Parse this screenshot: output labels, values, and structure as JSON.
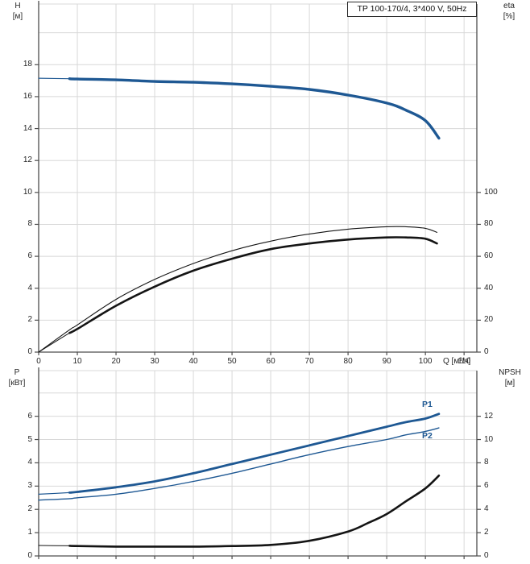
{
  "panel": {
    "title_box": "TP 100-170/4, 3*400 V, 50Hz",
    "top_left_axis_label": {
      "line1": "H",
      "line2": "[м]"
    },
    "top_right_axis_label": {
      "line1": "eta",
      "line2": "[%]"
    },
    "x_axis_label": "Q [м³/ч]",
    "bottom_left_axis_label": {
      "line1": "P",
      "line2": "[кВт]"
    },
    "bottom_right_axis_label": {
      "line1": "NPSH",
      "line2": "[м]"
    },
    "p1_label": "P1",
    "p2_label": "P2"
  },
  "colors": {
    "blue": "#1e5893",
    "black": "#141414",
    "grid": "#d8d8d8",
    "axis": "#4d4d4d",
    "text": "#262626"
  },
  "chart_data": [
    {
      "type": "line",
      "title": "TP 100-170/4, 3*400 V, 50Hz",
      "xlabel": "Q [м³/ч]",
      "ylabel_left": "H [м]",
      "ylabel_right": "eta [%]",
      "xlim": [
        0,
        113.3
      ],
      "x_ticks": [
        0,
        10,
        20,
        30,
        40,
        50,
        60,
        70,
        80,
        90,
        100,
        110
      ],
      "show_x_labels": true,
      "ylim_left": [
        0,
        21.8
      ],
      "y_ticks_left": [
        0,
        2,
        4,
        6,
        8,
        10,
        12,
        14,
        16,
        18
      ],
      "grid_step_left": 2,
      "y_ticks_right": [
        0,
        20,
        40,
        60,
        80,
        100
      ],
      "right_scale_to_left": 0.1,
      "grid": true,
      "legend": "none",
      "series": [
        {
          "name": "H",
          "axis": "left",
          "color_key": "blue",
          "width_thin": 1.2,
          "thin_to": 8,
          "width_thick": 3.4,
          "x": [
            0,
            8,
            10,
            20,
            30,
            40,
            50,
            60,
            70,
            80,
            90,
            95,
            100,
            103.5
          ],
          "y": [
            17.15,
            17.12,
            17.1,
            17.05,
            16.95,
            16.9,
            16.8,
            16.65,
            16.45,
            16.1,
            15.6,
            15.15,
            14.5,
            13.4
          ]
        },
        {
          "name": "eta-thin",
          "axis": "right",
          "color_key": "black",
          "width_thin": 1.1,
          "x": [
            0,
            8,
            10,
            20,
            30,
            40,
            50,
            60,
            70,
            80,
            90,
            95,
            100,
            103
          ],
          "y": [
            0,
            14,
            17,
            33,
            45.5,
            55.5,
            63.5,
            69.5,
            74,
            77,
            78.5,
            78.5,
            77.5,
            75
          ]
        },
        {
          "name": "eta-thick",
          "axis": "right",
          "color_key": "black",
          "width_thin": 1,
          "thin_to": 8,
          "width_thick": 2.6,
          "x": [
            0,
            8,
            10,
            20,
            30,
            40,
            50,
            60,
            70,
            80,
            90,
            95,
            100,
            103
          ],
          "y": [
            0,
            12,
            14.5,
            29,
            41,
            51,
            58.5,
            64.5,
            68,
            70.5,
            71.8,
            71.8,
            71,
            68
          ]
        }
      ]
    },
    {
      "type": "line",
      "title": "",
      "xlabel": "",
      "ylabel_left": "P [кВт]",
      "ylabel_right": "NPSH [м]",
      "xlim": [
        0,
        113.3
      ],
      "x_ticks": [
        0,
        10,
        20,
        30,
        40,
        50,
        60,
        70,
        80,
        90,
        100,
        110
      ],
      "show_x_labels": false,
      "ylim_left": [
        0,
        7.96
      ],
      "y_ticks_left": [
        0,
        1,
        2,
        3,
        4,
        5,
        6
      ],
      "grid_step_left": 1,
      "y_ticks_right": [
        0,
        2,
        4,
        6,
        8,
        10,
        12
      ],
      "right_scale_to_left": 0.5,
      "grid": true,
      "legend": "inline P1/P2 labels",
      "series": [
        {
          "name": "P1",
          "axis": "left",
          "color_key": "blue",
          "width_thin": 1.2,
          "thin_to": 8,
          "width_thick": 2.8,
          "x": [
            0,
            8,
            10,
            20,
            30,
            40,
            50,
            60,
            70,
            80,
            90,
            95,
            100,
            103.5
          ],
          "y": [
            2.65,
            2.72,
            2.75,
            2.95,
            3.2,
            3.55,
            3.95,
            4.35,
            4.75,
            5.15,
            5.55,
            5.75,
            5.9,
            6.1
          ]
        },
        {
          "name": "P2",
          "axis": "left",
          "color_key": "blue",
          "width_thin": 1.4,
          "x": [
            0,
            8,
            10,
            20,
            30,
            40,
            50,
            60,
            70,
            80,
            90,
            95,
            100,
            103.5
          ],
          "y": [
            2.4,
            2.46,
            2.5,
            2.65,
            2.9,
            3.2,
            3.55,
            3.95,
            4.35,
            4.7,
            5.0,
            5.2,
            5.35,
            5.5
          ]
        },
        {
          "name": "NPSH",
          "axis": "right",
          "color_key": "black",
          "width_thin": 1,
          "thin_to": 8,
          "width_thick": 2.6,
          "x": [
            0,
            8,
            10,
            20,
            30,
            40,
            50,
            60,
            70,
            80,
            85,
            90,
            95,
            100,
            103.5
          ],
          "y": [
            0.9,
            0.87,
            0.85,
            0.8,
            0.8,
            0.8,
            0.85,
            0.95,
            1.3,
            2.1,
            2.8,
            3.6,
            4.7,
            5.8,
            6.9
          ]
        }
      ]
    }
  ]
}
